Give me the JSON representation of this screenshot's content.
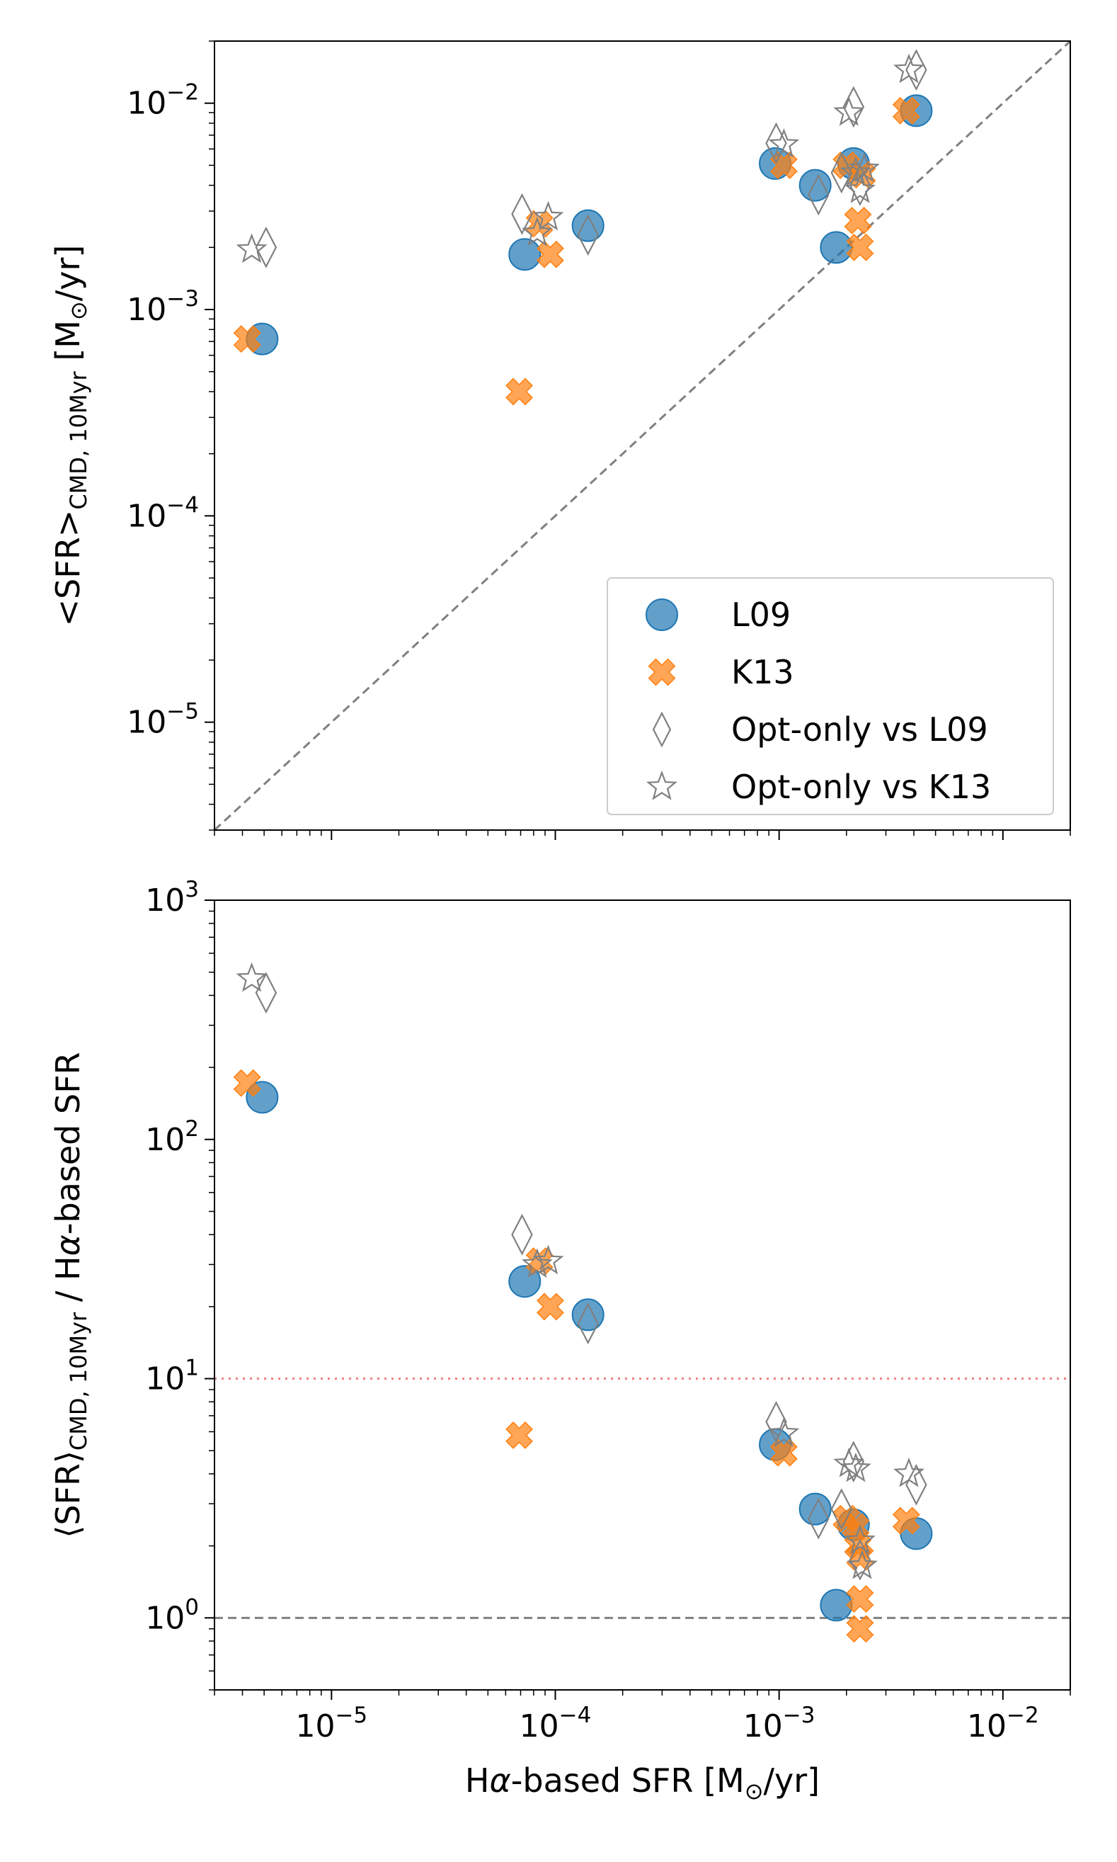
{
  "chart_data": [
    {
      "type": "scatter",
      "panel": "top",
      "xscale": "log",
      "yscale": "log",
      "xlim": [
        3e-06,
        0.02
      ],
      "ylim": [
        3e-06,
        0.02
      ],
      "xlabel": "",
      "ylabel": {
        "main": "<SFR>",
        "sub": "CMD, 10Myr",
        "units": " [M",
        "sun": "⊙",
        "tail": "/yr]"
      },
      "yticks": [
        {
          "value": 1e-05,
          "base": "10",
          "exp": "−5"
        },
        {
          "value": 0.0001,
          "base": "10",
          "exp": "−4"
        },
        {
          "value": 0.001,
          "base": "10",
          "exp": "−3"
        },
        {
          "value": 0.01,
          "base": "10",
          "exp": "−2"
        }
      ],
      "xticks_major": [
        1e-05,
        0.0001,
        0.001,
        0.01
      ],
      "reference_line": {
        "type": "one-to-one",
        "style": "dashed",
        "color": "#808080"
      },
      "legend": {
        "position": "lower-right",
        "entries": [
          {
            "label": "L09",
            "marker": "circle"
          },
          {
            "label": "K13",
            "marker": "x"
          },
          {
            "label": "Opt-only vs L09",
            "marker": "diamond"
          },
          {
            "label": "Opt-only vs K13",
            "marker": "star"
          }
        ]
      },
      "series": [
        {
          "name": "L09",
          "marker": "circle",
          "color": "#1f77b4",
          "points": [
            [
              4.9e-06,
              0.00072
            ],
            [
              7.3e-05,
              0.00185
            ],
            [
              0.00014,
              0.00255
            ],
            [
              0.00096,
              0.0051
            ],
            [
              0.00145,
              0.004
            ],
            [
              0.0018,
              0.002
            ],
            [
              0.00215,
              0.0051
            ],
            [
              0.0041,
              0.0092
            ]
          ]
        },
        {
          "name": "K13",
          "marker": "x",
          "color": "#ff7f0e",
          "points": [
            [
              4.2e-06,
              0.00072
            ],
            [
              6.9e-05,
              0.0004
            ],
            [
              8.5e-05,
              0.0026
            ],
            [
              9.5e-05,
              0.00185
            ],
            [
              0.00105,
              0.005
            ],
            [
              0.002,
              0.005
            ],
            [
              0.00225,
              0.0027
            ],
            [
              0.0023,
              0.002
            ],
            [
              0.00235,
              0.0045
            ],
            [
              0.0037,
              0.0092
            ]
          ]
        },
        {
          "name": "Opt-only vs L09",
          "marker": "diamond",
          "color": "#808080",
          "points": [
            [
              5.1e-06,
              0.002
            ],
            [
              7.1e-05,
              0.0029
            ],
            [
              0.00014,
              0.0023
            ],
            [
              0.00097,
              0.0064
            ],
            [
              0.0015,
              0.0036
            ],
            [
              0.0019,
              0.0046
            ],
            [
              0.00215,
              0.0096
            ],
            [
              0.0023,
              0.004
            ],
            [
              0.0041,
              0.0145
            ]
          ]
        },
        {
          "name": "Opt-only vs K13",
          "marker": "star",
          "color": "#808080",
          "points": [
            [
              4.4e-06,
              0.00195
            ],
            [
              8.3e-05,
              0.00235
            ],
            [
              9.3e-05,
              0.0028
            ],
            [
              0.00105,
              0.0063
            ],
            [
              0.00205,
              0.009
            ],
            [
              0.0022,
              0.0046
            ],
            [
              0.0023,
              0.0038
            ],
            [
              0.0024,
              0.0048
            ],
            [
              0.0038,
              0.0145
            ]
          ]
        }
      ]
    },
    {
      "type": "scatter",
      "panel": "bottom",
      "xscale": "log",
      "yscale": "log",
      "xlim": [
        3e-06,
        0.02
      ],
      "ylim": [
        0.5,
        1000
      ],
      "xlabel": {
        "pre": "H",
        "alpha": "α",
        "post": "-based SFR [M",
        "sun": "⊙",
        "tail": "/yr]"
      },
      "ylabel": {
        "main": "⟨SFR⟩",
        "sub": "CMD, 10Myr",
        "tail": " / H",
        "alpha": "α",
        "end": "-based SFR"
      },
      "xticks": [
        {
          "value": 1e-05,
          "base": "10",
          "exp": "−5"
        },
        {
          "value": 0.0001,
          "base": "10",
          "exp": "−4"
        },
        {
          "value": 0.001,
          "base": "10",
          "exp": "−3"
        },
        {
          "value": 0.01,
          "base": "10",
          "exp": "−2"
        }
      ],
      "yticks": [
        {
          "value": 1,
          "base": "10",
          "exp": "0"
        },
        {
          "value": 10,
          "base": "10",
          "exp": "1"
        },
        {
          "value": 100,
          "base": "10",
          "exp": "2"
        },
        {
          "value": 1000,
          "base": "10",
          "exp": "3"
        }
      ],
      "reference_lines": [
        {
          "y": 10,
          "style": "dotted",
          "color": "#f08080"
        },
        {
          "y": 1,
          "style": "dashed",
          "color": "#808080"
        }
      ],
      "series": [
        {
          "name": "L09",
          "marker": "circle",
          "color": "#1f77b4",
          "points": [
            [
              4.9e-06,
              150
            ],
            [
              7.3e-05,
              25.5
            ],
            [
              0.00014,
              18.5
            ],
            [
              0.00096,
              5.3
            ],
            [
              0.00145,
              2.85
            ],
            [
              0.0018,
              1.13
            ],
            [
              0.00215,
              2.45
            ],
            [
              0.0041,
              2.25
            ]
          ]
        },
        {
          "name": "K13",
          "marker": "x",
          "color": "#ff7f0e",
          "points": [
            [
              4.2e-06,
              172
            ],
            [
              6.9e-05,
              5.8
            ],
            [
              8.5e-05,
              31
            ],
            [
              9.5e-05,
              20
            ],
            [
              0.00105,
              4.9
            ],
            [
              0.002,
              2.6
            ],
            [
              0.0022,
              2.4
            ],
            [
              0.00225,
              2.0
            ],
            [
              0.0023,
              1.8
            ],
            [
              0.0023,
              1.2
            ],
            [
              0.0023,
              0.9
            ],
            [
              0.0037,
              2.55
            ]
          ]
        },
        {
          "name": "Opt-only vs L09",
          "marker": "diamond",
          "color": "#808080",
          "points": [
            [
              5.1e-06,
              410
            ],
            [
              7.1e-05,
              40
            ],
            [
              0.00014,
              17
            ],
            [
              0.00097,
              6.6
            ],
            [
              0.0015,
              2.6
            ],
            [
              0.0019,
              2.85
            ],
            [
              0.00215,
              4.5
            ],
            [
              0.0023,
              1.75
            ],
            [
              0.0041,
              3.6
            ]
          ]
        },
        {
          "name": "Opt-only vs K13",
          "marker": "star",
          "color": "#808080",
          "points": [
            [
              4.4e-06,
              470
            ],
            [
              8.3e-05,
              30
            ],
            [
              9.3e-05,
              31
            ],
            [
              0.00105,
              5.9
            ],
            [
              0.00205,
              4.4
            ],
            [
              0.0022,
              4.2
            ],
            [
              0.0023,
              2.1
            ],
            [
              0.00235,
              1.65
            ],
            [
              0.0038,
              4.0
            ]
          ]
        }
      ]
    }
  ]
}
